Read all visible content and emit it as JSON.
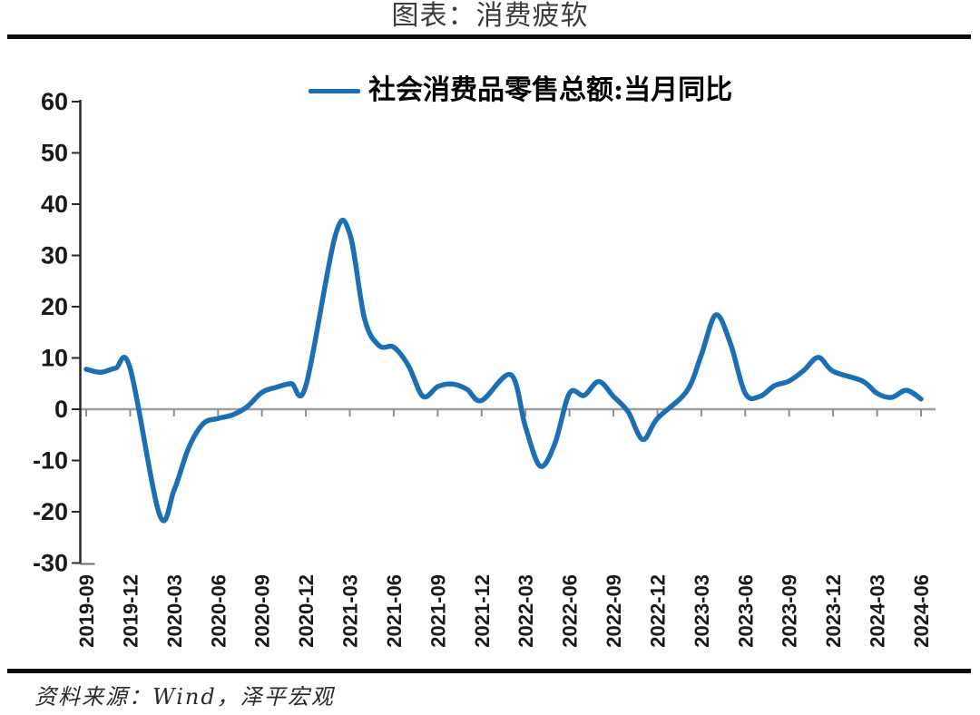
{
  "chart_data": {
    "type": "line",
    "title": "图表：消费疲软",
    "source": "资料来源：Wind，泽平宏观",
    "legend": [
      {
        "label": "社会消费品零售总额:当月同比",
        "color": "#1c6fb3"
      }
    ],
    "legend_position": "top-center",
    "xlabel": "",
    "ylabel": "",
    "ylim": [
      -30,
      60
    ],
    "y_ticks": [
      60,
      50,
      40,
      30,
      20,
      10,
      0,
      -10,
      -20,
      -30
    ],
    "x_tick_labels": [
      "2019-09",
      "2019-12",
      "2020-03",
      "2020-06",
      "2020-09",
      "2020-12",
      "2021-03",
      "2021-06",
      "2021-09",
      "2021-12",
      "2022-03",
      "2022-06",
      "2022-09",
      "2022-12",
      "2023-03",
      "2023-06",
      "2023-09",
      "2023-12",
      "2024-03",
      "2024-06"
    ],
    "grid": "zero-baseline-only",
    "series": [
      {
        "name": "社会消费品零售总额:当月同比",
        "unit": "%",
        "color": "#1c6fb3",
        "points": [
          [
            "2019-09",
            7.8
          ],
          [
            "2019-10",
            7.2
          ],
          [
            "2019-11",
            8.0
          ],
          [
            "2019-12",
            8.0
          ],
          [
            "2020-02",
            -20.5
          ],
          [
            "2020-03",
            -15.8
          ],
          [
            "2020-04",
            -7.5
          ],
          [
            "2020-05",
            -2.8
          ],
          [
            "2020-06",
            -1.8
          ],
          [
            "2020-07",
            -1.1
          ],
          [
            "2020-08",
            0.5
          ],
          [
            "2020-09",
            3.3
          ],
          [
            "2020-10",
            4.3
          ],
          [
            "2020-11",
            5.0
          ],
          [
            "2020-12",
            4.6
          ],
          [
            "2021-02",
            33.8
          ],
          [
            "2021-03",
            34.2
          ],
          [
            "2021-04",
            17.7
          ],
          [
            "2021-05",
            12.4
          ],
          [
            "2021-06",
            12.1
          ],
          [
            "2021-07",
            8.5
          ],
          [
            "2021-08",
            2.5
          ],
          [
            "2021-09",
            4.4
          ],
          [
            "2021-10",
            4.9
          ],
          [
            "2021-11",
            3.9
          ],
          [
            "2021-12",
            1.7
          ],
          [
            "2022-02",
            6.7
          ],
          [
            "2022-03",
            -3.5
          ],
          [
            "2022-04",
            -11.1
          ],
          [
            "2022-05",
            -6.7
          ],
          [
            "2022-06",
            3.1
          ],
          [
            "2022-07",
            2.7
          ],
          [
            "2022-08",
            5.4
          ],
          [
            "2022-09",
            2.5
          ],
          [
            "2022-10",
            -0.5
          ],
          [
            "2022-11",
            -5.9
          ],
          [
            "2022-12",
            -1.8
          ],
          [
            "2023-02",
            3.5
          ],
          [
            "2023-03",
            10.6
          ],
          [
            "2023-04",
            18.4
          ],
          [
            "2023-05",
            12.7
          ],
          [
            "2023-06",
            3.1
          ],
          [
            "2023-07",
            2.5
          ],
          [
            "2023-08",
            4.6
          ],
          [
            "2023-09",
            5.5
          ],
          [
            "2023-10",
            7.6
          ],
          [
            "2023-11",
            10.1
          ],
          [
            "2023-12",
            7.4
          ],
          [
            "2024-02",
            5.5
          ],
          [
            "2024-03",
            3.1
          ],
          [
            "2024-04",
            2.3
          ],
          [
            "2024-05",
            3.7
          ],
          [
            "2024-06",
            2.0
          ]
        ]
      }
    ],
    "colors": {
      "line": "#1c6fb3",
      "zero_line": "#9e9e9e",
      "axis": "#2a2a2a",
      "tick_label": "#1a1a1a"
    }
  }
}
